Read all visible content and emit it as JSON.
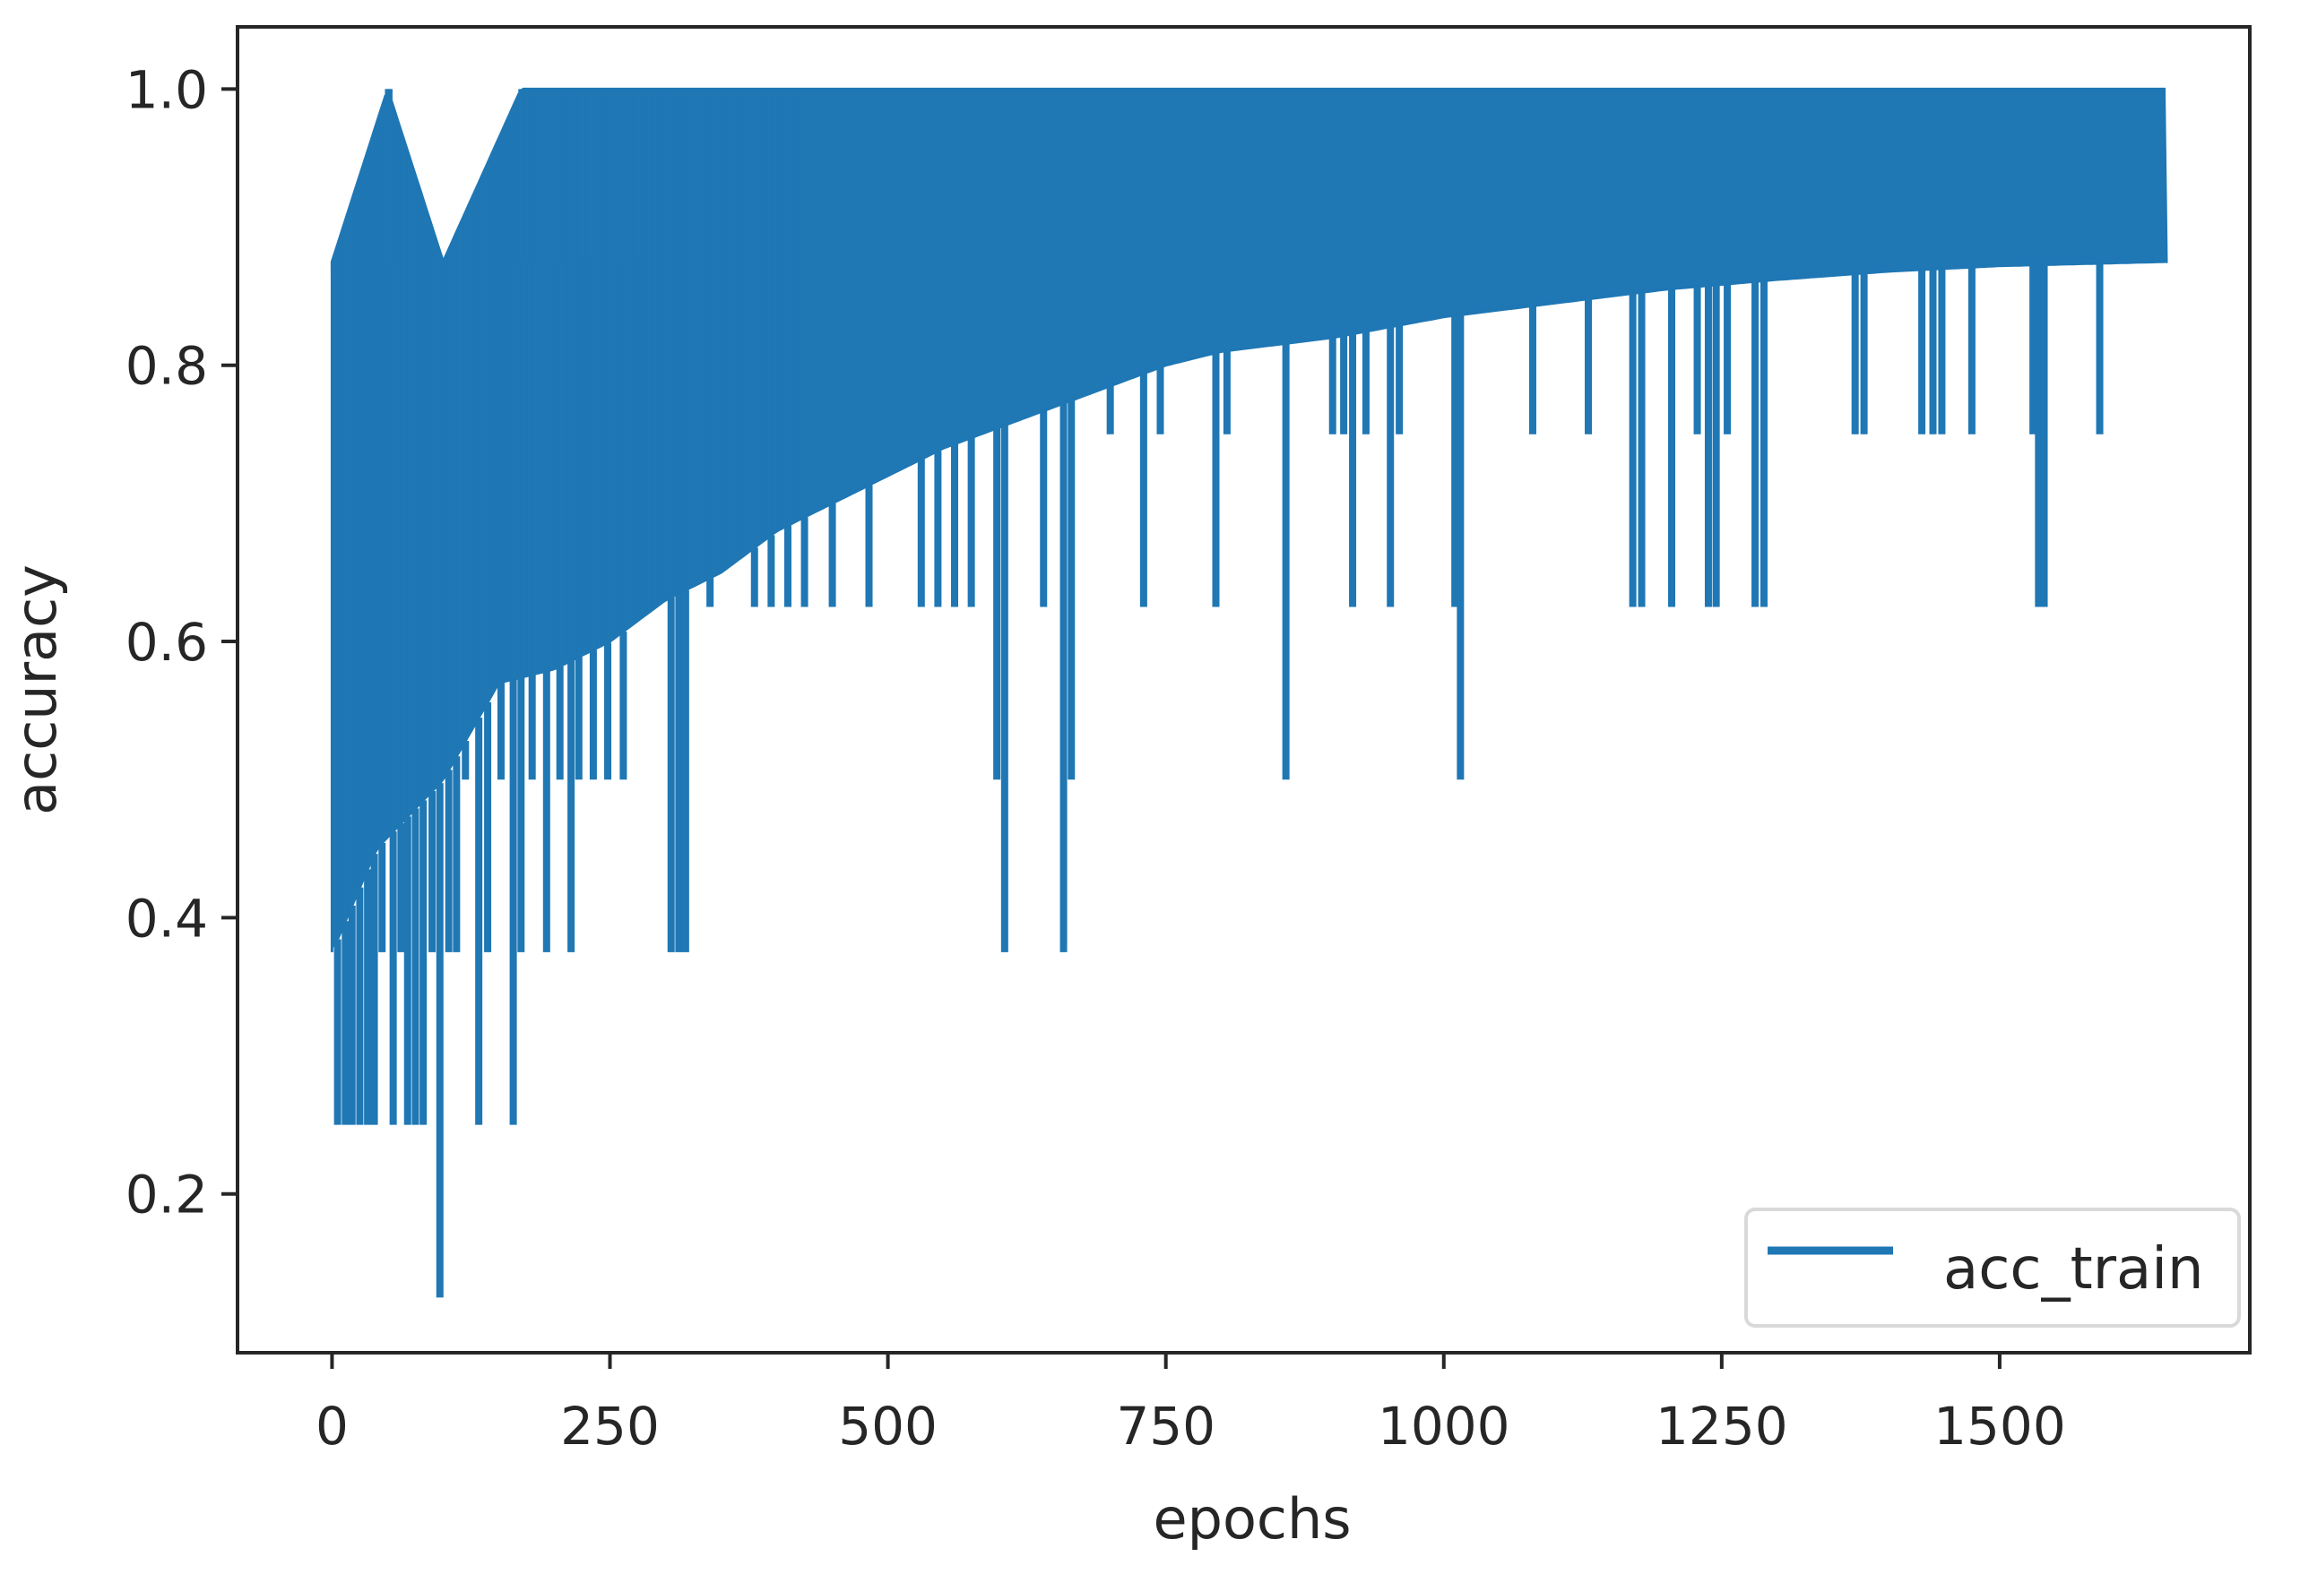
{
  "chart_data": {
    "type": "line",
    "xlabel": "epochs",
    "ylabel": "accuracy",
    "xlim": [
      -85,
      1725
    ],
    "ylim": [
      0.085,
      1.045
    ],
    "x_ticks": [
      0,
      250,
      500,
      750,
      1000,
      1250,
      1500
    ],
    "x_tick_labels": [
      "0",
      "250",
      "500",
      "750",
      "1000",
      "1250",
      "1500"
    ],
    "y_ticks": [
      0.2,
      0.4,
      0.6,
      0.8,
      1.0
    ],
    "y_tick_labels": [
      "0.2",
      "0.4",
      "0.6",
      "0.8",
      "1.0"
    ],
    "grid": false,
    "legend_position": "lower-right",
    "colors": {
      "series": "#1f77b4",
      "axes": "#262626",
      "legend_edge": "#d9d9d9"
    },
    "series": [
      {
        "name": "acc_train",
        "x_range": [
          0,
          1650
        ],
        "y_min": 0.125,
        "y_max": 1.0,
        "band_upper": {
          "x": [
            0,
            50,
            100,
            170,
            250,
            400,
            1650
          ],
          "y": [
            0.875,
            1.0,
            0.875,
            1.0,
            1.0,
            1.0,
            1.0
          ]
        },
        "band_lower": {
          "x": [
            0,
            40,
            100,
            150,
            200,
            250,
            300,
            350,
            400,
            450,
            500,
            550,
            600,
            650,
            700,
            750,
            800,
            900,
            1000,
            1100,
            1200,
            1300,
            1400,
            1500,
            1650
          ],
          "y": [
            0.375,
            0.45,
            0.5,
            0.57,
            0.58,
            0.6,
            0.63,
            0.65,
            0.68,
            0.7,
            0.72,
            0.74,
            0.755,
            0.77,
            0.785,
            0.8,
            0.81,
            0.82,
            0.835,
            0.845,
            0.855,
            0.862,
            0.868,
            0.872,
            0.875
          ]
        },
        "dips": [
          {
            "x": 5,
            "y": 0.25
          },
          {
            "x": 12,
            "y": 0.25
          },
          {
            "x": 18,
            "y": 0.25
          },
          {
            "x": 25,
            "y": 0.25
          },
          {
            "x": 32,
            "y": 0.25
          },
          {
            "x": 38,
            "y": 0.25
          },
          {
            "x": 45,
            "y": 0.375
          },
          {
            "x": 55,
            "y": 0.25
          },
          {
            "x": 62,
            "y": 0.375
          },
          {
            "x": 68,
            "y": 0.25
          },
          {
            "x": 75,
            "y": 0.25
          },
          {
            "x": 82,
            "y": 0.25
          },
          {
            "x": 90,
            "y": 0.375
          },
          {
            "x": 97,
            "y": 0.125
          },
          {
            "x": 105,
            "y": 0.375
          },
          {
            "x": 112,
            "y": 0.375
          },
          {
            "x": 120,
            "y": 0.5
          },
          {
            "x": 132,
            "y": 0.25
          },
          {
            "x": 140,
            "y": 0.375
          },
          {
            "x": 152,
            "y": 0.5
          },
          {
            "x": 163,
            "y": 0.25
          },
          {
            "x": 170,
            "y": 0.375
          },
          {
            "x": 180,
            "y": 0.5
          },
          {
            "x": 193,
            "y": 0.375
          },
          {
            "x": 205,
            "y": 0.5
          },
          {
            "x": 215,
            "y": 0.375
          },
          {
            "x": 222,
            "y": 0.5
          },
          {
            "x": 235,
            "y": 0.5
          },
          {
            "x": 248,
            "y": 0.5
          },
          {
            "x": 262,
            "y": 0.5
          },
          {
            "x": 270,
            "y": 0.625
          },
          {
            "x": 290,
            "y": 0.625
          },
          {
            "x": 305,
            "y": 0.375
          },
          {
            "x": 312,
            "y": 0.375
          },
          {
            "x": 318,
            "y": 0.375
          },
          {
            "x": 340,
            "y": 0.625
          },
          {
            "x": 380,
            "y": 0.625
          },
          {
            "x": 395,
            "y": 0.625
          },
          {
            "x": 410,
            "y": 0.625
          },
          {
            "x": 425,
            "y": 0.625
          },
          {
            "x": 450,
            "y": 0.625
          },
          {
            "x": 483,
            "y": 0.625
          },
          {
            "x": 530,
            "y": 0.625
          },
          {
            "x": 545,
            "y": 0.625
          },
          {
            "x": 560,
            "y": 0.625
          },
          {
            "x": 575,
            "y": 0.625
          },
          {
            "x": 598,
            "y": 0.5
          },
          {
            "x": 605,
            "y": 0.375
          },
          {
            "x": 640,
            "y": 0.625
          },
          {
            "x": 658,
            "y": 0.375
          },
          {
            "x": 665,
            "y": 0.5
          },
          {
            "x": 700,
            "y": 0.75
          },
          {
            "x": 730,
            "y": 0.625
          },
          {
            "x": 745,
            "y": 0.75
          },
          {
            "x": 795,
            "y": 0.625
          },
          {
            "x": 805,
            "y": 0.75
          },
          {
            "x": 858,
            "y": 0.5
          },
          {
            "x": 900,
            "y": 0.75
          },
          {
            "x": 910,
            "y": 0.75
          },
          {
            "x": 918,
            "y": 0.625
          },
          {
            "x": 930,
            "y": 0.75
          },
          {
            "x": 952,
            "y": 0.625
          },
          {
            "x": 960,
            "y": 0.75
          },
          {
            "x": 1010,
            "y": 0.625
          },
          {
            "x": 1015,
            "y": 0.5
          },
          {
            "x": 1080,
            "y": 0.75
          },
          {
            "x": 1130,
            "y": 0.75
          },
          {
            "x": 1170,
            "y": 0.625
          },
          {
            "x": 1178,
            "y": 0.625
          },
          {
            "x": 1205,
            "y": 0.625
          },
          {
            "x": 1228,
            "y": 0.75
          },
          {
            "x": 1238,
            "y": 0.625
          },
          {
            "x": 1245,
            "y": 0.625
          },
          {
            "x": 1255,
            "y": 0.75
          },
          {
            "x": 1280,
            "y": 0.625
          },
          {
            "x": 1288,
            "y": 0.625
          },
          {
            "x": 1370,
            "y": 0.75
          },
          {
            "x": 1378,
            "y": 0.75
          },
          {
            "x": 1430,
            "y": 0.75
          },
          {
            "x": 1440,
            "y": 0.75
          },
          {
            "x": 1448,
            "y": 0.75
          },
          {
            "x": 1475,
            "y": 0.75
          },
          {
            "x": 1530,
            "y": 0.75
          },
          {
            "x": 1535,
            "y": 0.625
          },
          {
            "x": 1540,
            "y": 0.625
          },
          {
            "x": 1590,
            "y": 0.75
          }
        ]
      }
    ]
  }
}
